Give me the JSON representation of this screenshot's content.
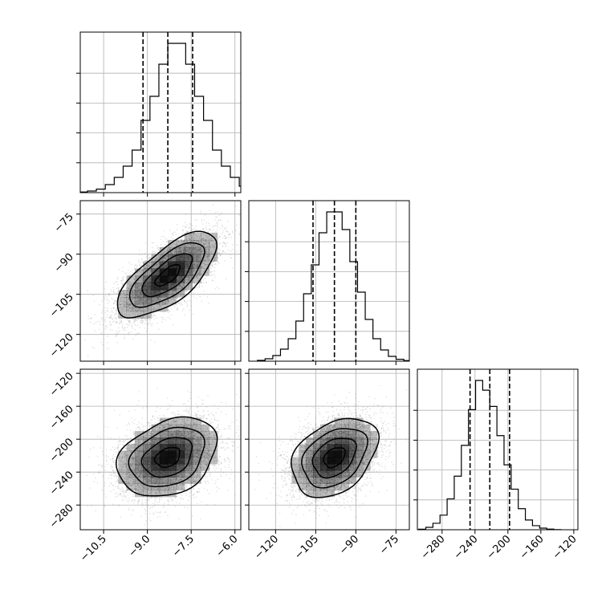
{
  "chart_data": {
    "type": "corner",
    "grid": true,
    "parameters": [
      {
        "id": "p0",
        "mean": -8.3,
        "sd": 0.85,
        "range": [
          -11.3,
          -5.8
        ],
        "ticks": [
          -10.5,
          -9.0,
          -7.5,
          -6.0
        ],
        "tick_labels": [
          "−10.5",
          "−9.0",
          "−7.5",
          "−6.0"
        ],
        "quantiles": [
          -9.15,
          -8.3,
          -7.45
        ]
      },
      {
        "id": "p1",
        "mean": -98,
        "sd": 8.0,
        "range": [
          -130,
          -70
        ],
        "ticks": [
          -120,
          -105,
          -90,
          -75
        ],
        "tick_labels": [
          "−120",
          "−105",
          "−90",
          "−75"
        ],
        "quantiles": [
          -106,
          -98,
          -90
        ]
      },
      {
        "id": "p2",
        "mean": -222,
        "sd": 24,
        "range": [
          -310,
          -115
        ],
        "ticks": [
          -280,
          -240,
          -200,
          -160,
          -120
        ],
        "tick_labels": [
          "−280",
          "−240",
          "−200",
          "−160",
          "−120"
        ],
        "quantiles": [
          -246,
          -222,
          -198
        ]
      }
    ],
    "correlations": {
      "p0_p1": 0.7,
      "p0_p2": 0.3,
      "p1_p2": 0.35
    },
    "histograms": [
      {
        "param": "p0",
        "bins": 20,
        "counts": [
          0.4,
          1.0,
          2.2,
          5.0,
          9.5,
          16.5,
          26.5,
          45.0,
          60.0,
          80.0,
          93.0,
          93.0,
          80.0,
          60.0,
          45.0,
          26.5,
          16.5,
          9.5,
          4.0,
          1.2
        ]
      },
      {
        "param": "p1",
        "bins": 20,
        "counts": [
          0.5,
          1.5,
          3.5,
          7.5,
          14.0,
          25.0,
          42.0,
          60.0,
          80.0,
          93.0,
          93.0,
          82.0,
          62.0,
          43.0,
          26.0,
          14.0,
          7.0,
          3.0,
          1.2,
          0.4
        ]
      },
      {
        "param": "p2",
        "bins": 20,
        "counts": [
          0.3,
          1.5,
          4.0,
          9.0,
          19.0,
          33.0,
          52.0,
          74.0,
          92.0,
          86.0,
          76.0,
          58.0,
          40.0,
          25.0,
          13.0,
          6.0,
          2.5,
          1.0,
          0.4,
          0.1
        ]
      }
    ],
    "scatter_pairs": [
      {
        "x": "p0",
        "y": "p1"
      },
      {
        "x": "p0",
        "y": "p2"
      },
      {
        "x": "p1",
        "y": "p2"
      }
    ],
    "contour_levels_sigma": [
      0.5,
      1.0,
      1.5,
      2.0
    ],
    "colors": {
      "points": "#8a8a8a",
      "density": "#000000",
      "lines": "#000000"
    }
  }
}
